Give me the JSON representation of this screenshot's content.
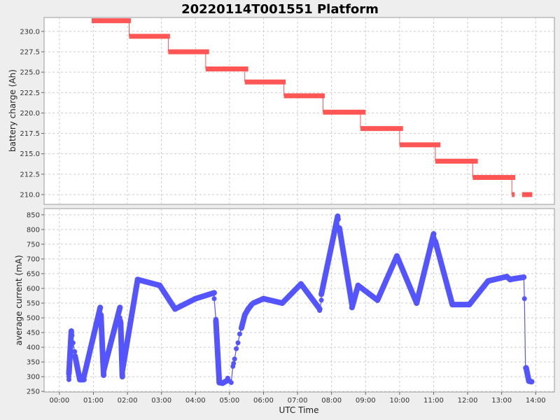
{
  "title": "20220114T001551 Platform",
  "colors": {
    "charge": "#ff5555",
    "current": "#5555ff",
    "grid": "#cccccc",
    "plot_bg": "#ffffff",
    "page_bg": "#eeeeee"
  },
  "chart_data": [
    {
      "type": "line",
      "ylabel": "battery charge (Ah)",
      "ylim": [
        208.8,
        231.7
      ],
      "yticks": [
        210.0,
        212.5,
        215.0,
        217.5,
        220.0,
        222.5,
        225.0,
        227.5,
        230.0
      ],
      "ytick_labels": [
        "210.0",
        "212.5",
        "215.0",
        "217.5",
        "220.0",
        "222.5",
        "225.0",
        "227.5",
        "230.0"
      ],
      "grid": true,
      "series": [
        {
          "segments": [
            {
              "x_start": 0.95,
              "x_end": 2.1,
              "y": 231.3
            },
            {
              "x_start": 2.05,
              "x_end": 3.25,
              "y": 229.4
            },
            {
              "x_start": 3.2,
              "x_end": 4.4,
              "y": 227.5
            },
            {
              "x_start": 4.3,
              "x_end": 5.55,
              "y": 225.4
            },
            {
              "x_start": 5.45,
              "x_end": 6.65,
              "y": 223.8
            },
            {
              "x_start": 6.6,
              "x_end": 7.8,
              "y": 222.1
            },
            {
              "x_start": 7.75,
              "x_end": 9.0,
              "y": 220.1
            },
            {
              "x_start": 8.85,
              "x_end": 10.1,
              "y": 218.1
            },
            {
              "x_start": 10.0,
              "x_end": 11.2,
              "y": 216.1
            },
            {
              "x_start": 11.05,
              "x_end": 12.3,
              "y": 214.1
            },
            {
              "x_start": 12.15,
              "x_end": 13.4,
              "y": 212.1
            },
            {
              "x_start": 13.3,
              "x_end": 13.38,
              "y": 210.0
            },
            {
              "x_start": 13.6,
              "x_end": 13.9,
              "y": 210.0
            }
          ]
        }
      ]
    },
    {
      "type": "line",
      "ylabel": "average current (mA)",
      "xlabel": "UTC Time",
      "xlim": [
        -0.45,
        14.55
      ],
      "ylim": [
        248,
        871
      ],
      "xticks": [
        0,
        1,
        2,
        3,
        4,
        5,
        6,
        7,
        8,
        9,
        10,
        11,
        12,
        13,
        14
      ],
      "xtick_labels": [
        "00:00",
        "01:00",
        "02:00",
        "03:00",
        "04:00",
        "05:00",
        "06:00",
        "07:00",
        "08:00",
        "09:00",
        "10:00",
        "11:00",
        "12:00",
        "13:00",
        "14:00"
      ],
      "yticks": [
        250,
        300,
        350,
        400,
        450,
        500,
        550,
        600,
        650,
        700,
        750,
        800,
        850
      ],
      "ytick_labels": [
        "250",
        "300",
        "350",
        "400",
        "450",
        "500",
        "550",
        "600",
        "650",
        "700",
        "750",
        "800",
        "850"
      ],
      "grid": true,
      "series": [
        {
          "x": [
            0.28,
            0.28,
            0.28,
            0.35,
            0.37,
            0.4,
            0.45,
            0.46,
            0.6,
            0.72,
            0.72,
            1.2,
            1.22,
            1.3,
            1.3,
            1.78,
            1.78,
            1.8,
            1.8,
            1.85,
            1.85,
            2.3,
            2.95,
            3.4,
            4.0,
            4.55,
            4.55,
            4.6,
            4.6,
            4.7,
            4.8,
            4.9,
            4.95,
            5.0,
            5.05,
            5.1,
            5.12,
            5.15,
            5.2,
            5.25,
            5.3,
            5.35,
            5.45,
            5.55,
            5.65,
            5.7,
            6.0,
            6.55,
            7.1,
            7.65,
            7.65,
            7.7,
            7.7,
            8.18,
            8.2,
            8.23,
            8.6,
            8.6,
            8.78,
            9.35,
            9.92,
            10.5,
            11.0,
            11.02,
            11.05,
            11.55,
            12.05,
            12.6,
            13.15,
            13.25,
            13.32,
            13.65,
            13.67,
            13.7,
            13.72,
            13.8,
            13.88
          ],
          "values": [
            290,
            300,
            310,
            455,
            440,
            415,
            385,
            370,
            290,
            290,
            300,
            535,
            510,
            305,
            320,
            535,
            500,
            490,
            485,
            300,
            320,
            630,
            610,
            530,
            565,
            585,
            565,
            495,
            490,
            280,
            278,
            285,
            295,
            285,
            280,
            335,
            345,
            360,
            395,
            415,
            445,
            465,
            510,
            530,
            545,
            550,
            565,
            550,
            615,
            530,
            525,
            560,
            580,
            845,
            835,
            805,
            545,
            535,
            610,
            560,
            710,
            550,
            785,
            770,
            760,
            545,
            545,
            625,
            640,
            630,
            632,
            638,
            565,
            330,
            330,
            285,
            283
          ]
        }
      ]
    }
  ]
}
